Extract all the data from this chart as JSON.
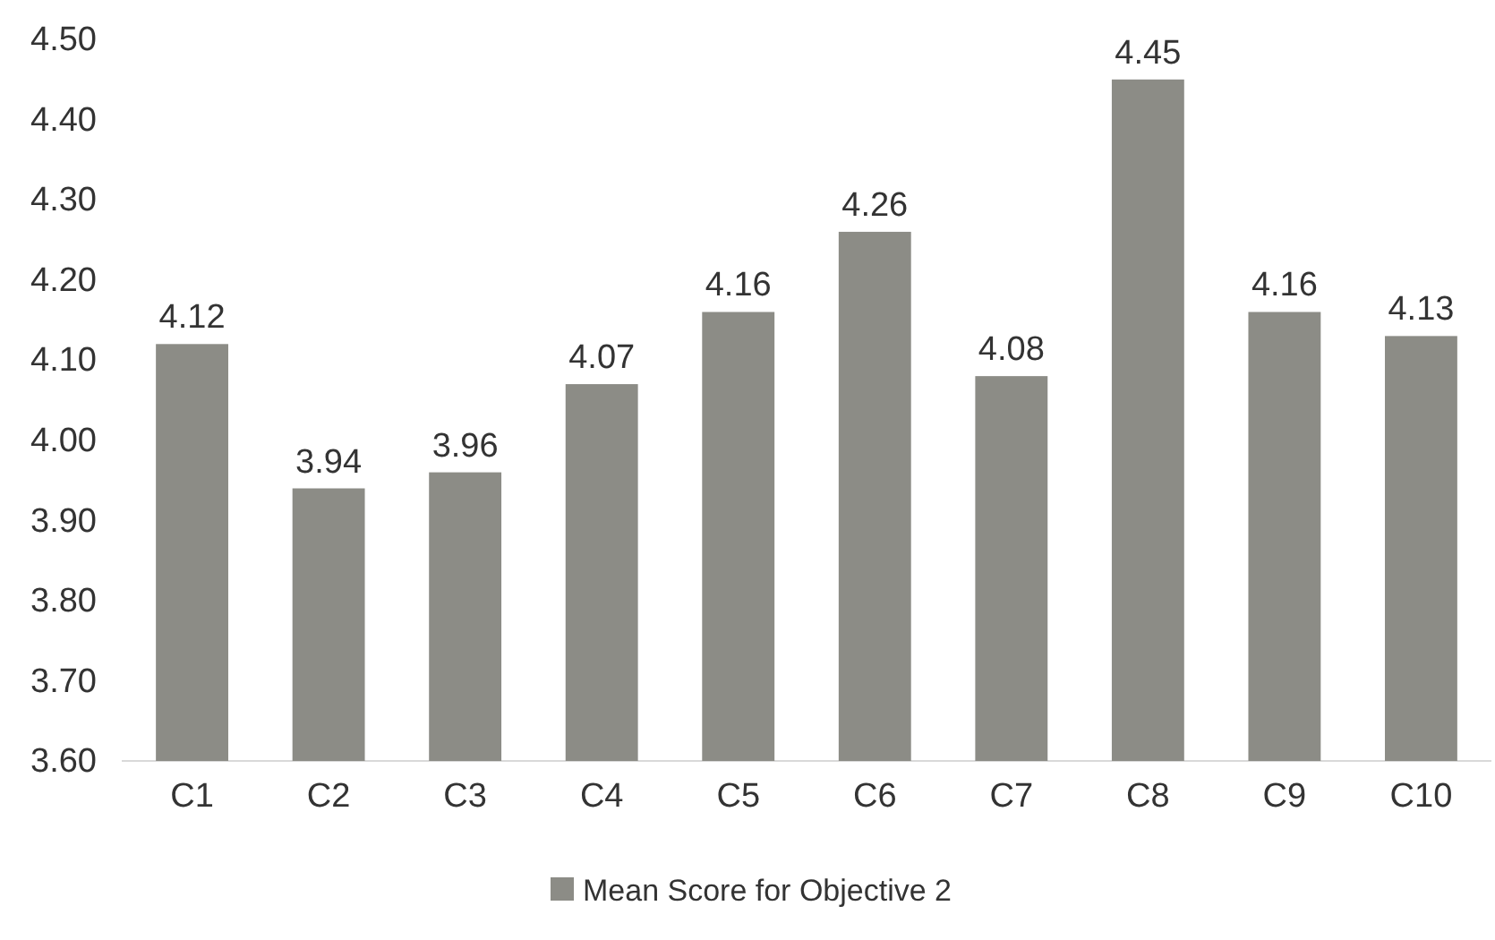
{
  "chart_data": {
    "type": "bar",
    "categories": [
      "C1",
      "C2",
      "C3",
      "C4",
      "C5",
      "C6",
      "C7",
      "C8",
      "C9",
      "C10"
    ],
    "series": [
      {
        "name": "Mean Score for Objective 2",
        "color": "#8c8c86",
        "values": [
          4.12,
          3.94,
          3.96,
          4.07,
          4.16,
          4.26,
          4.08,
          4.45,
          4.16,
          4.13
        ]
      }
    ],
    "ylim": [
      3.6,
      4.5
    ],
    "yticks": [
      {
        "value": 3.6,
        "label": "3.60"
      },
      {
        "value": 3.7,
        "label": "3.70"
      },
      {
        "value": 3.8,
        "label": "3.80"
      },
      {
        "value": 3.9,
        "label": "3.90"
      },
      {
        "value": 4.0,
        "label": "4.00"
      },
      {
        "value": 4.1,
        "label": "4.10"
      },
      {
        "value": 4.2,
        "label": "4.20"
      },
      {
        "value": 4.3,
        "label": "4.30"
      },
      {
        "value": 4.4,
        "label": "4.40"
      },
      {
        "value": 4.5,
        "label": "4.50"
      }
    ],
    "data_labels": true,
    "legend": "bottom",
    "grid": false
  }
}
